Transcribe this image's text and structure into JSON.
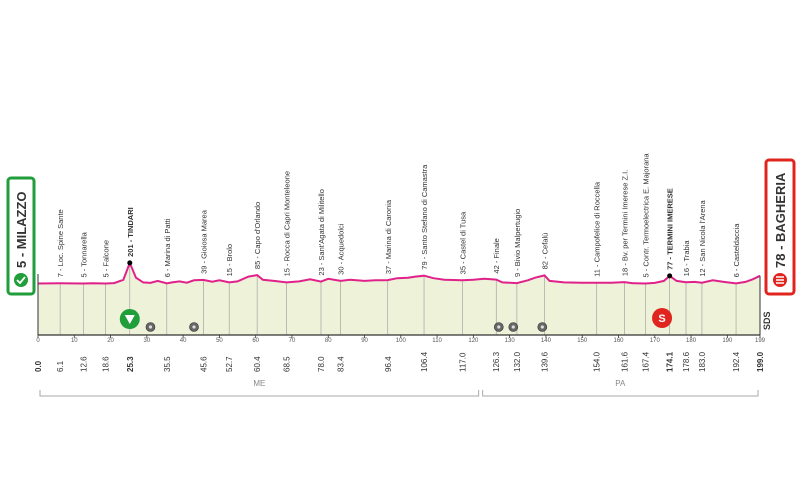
{
  "start": {
    "elevation": "5",
    "name": "MILAZZO",
    "km": "0.0"
  },
  "finish": {
    "elevation": "78",
    "name": "BAGHERIA",
    "km": "199.0"
  },
  "colors": {
    "profile_line": "#e0218a",
    "fill": "#eef2d9",
    "start_box": "#1f9e3a",
    "finish_box": "#e0241e",
    "sprint_marker": "#e0241e",
    "start_marker": "#1f9e3a",
    "grid": "#999999"
  },
  "chart_data": {
    "type": "area",
    "title": "",
    "xlabel": "",
    "ylabel": "",
    "xlim": [
      0,
      199
    ],
    "x_ticks": [
      0,
      10,
      20,
      30,
      40,
      50,
      60,
      70,
      80,
      90,
      100,
      110,
      120,
      130,
      140,
      150,
      160,
      170,
      180,
      190,
      199
    ],
    "x_tick_labels": [
      "0",
      "10",
      "20",
      "30",
      "40",
      "50",
      "60",
      "70",
      "80",
      "90",
      "100",
      "110",
      "120",
      "130",
      "140",
      "150",
      "160",
      "170",
      "180",
      "190",
      "199"
    ],
    "profile": [
      [
        0,
        5
      ],
      [
        3,
        6
      ],
      [
        6.1,
        7
      ],
      [
        9,
        6
      ],
      [
        12.6,
        5
      ],
      [
        15,
        8
      ],
      [
        18.6,
        5
      ],
      [
        21,
        9
      ],
      [
        23.5,
        40
      ],
      [
        25.3,
        201
      ],
      [
        27,
        60
      ],
      [
        29,
        15
      ],
      [
        31,
        10
      ],
      [
        33,
        30
      ],
      [
        35.5,
        6
      ],
      [
        37,
        15
      ],
      [
        39,
        25
      ],
      [
        41,
        12
      ],
      [
        43,
        35
      ],
      [
        45.6,
        39
      ],
      [
        48,
        22
      ],
      [
        50,
        35
      ],
      [
        52.7,
        15
      ],
      [
        55,
        25
      ],
      [
        58,
        70
      ],
      [
        60.4,
        85
      ],
      [
        62,
        40
      ],
      [
        65,
        30
      ],
      [
        68.5,
        15
      ],
      [
        72,
        25
      ],
      [
        75,
        45
      ],
      [
        78,
        23
      ],
      [
        80,
        50
      ],
      [
        83.4,
        30
      ],
      [
        86,
        40
      ],
      [
        90,
        30
      ],
      [
        93,
        35
      ],
      [
        96.4,
        37
      ],
      [
        99,
        55
      ],
      [
        102,
        60
      ],
      [
        104,
        70
      ],
      [
        106.4,
        79
      ],
      [
        109,
        55
      ],
      [
        112,
        40
      ],
      [
        117,
        35
      ],
      [
        120,
        40
      ],
      [
        123,
        50
      ],
      [
        126.3,
        42
      ],
      [
        128,
        15
      ],
      [
        132,
        9
      ],
      [
        135,
        35
      ],
      [
        137,
        60
      ],
      [
        139.6,
        82
      ],
      [
        141,
        30
      ],
      [
        145,
        15
      ],
      [
        150,
        12
      ],
      [
        154,
        11
      ],
      [
        158,
        12
      ],
      [
        161.6,
        18
      ],
      [
        164,
        8
      ],
      [
        167.4,
        5
      ],
      [
        170,
        10
      ],
      [
        172.5,
        30
      ],
      [
        174.1,
        77
      ],
      [
        176,
        30
      ],
      [
        178.6,
        16
      ],
      [
        181,
        20
      ],
      [
        183,
        12
      ],
      [
        186,
        35
      ],
      [
        189,
        20
      ],
      [
        192.4,
        6
      ],
      [
        195,
        20
      ],
      [
        197,
        45
      ],
      [
        199,
        78
      ]
    ],
    "waypoints": [
      {
        "km": "0.0",
        "label": ""
      },
      {
        "km": "6.1",
        "label": "7 - Loc. Spine Sante"
      },
      {
        "km": "12.6",
        "label": "5 - Tonnarella"
      },
      {
        "km": "18.6",
        "label": "5 - Falcone"
      },
      {
        "km": "25.3",
        "label": "201 - TINDARI"
      },
      {
        "km": "35.5",
        "label": "6 - Marina di Patti"
      },
      {
        "km": "45.6",
        "label": "39 - Gioiosa Marea"
      },
      {
        "km": "52.7",
        "label": "15 - Brolo"
      },
      {
        "km": "60.4",
        "label": "85 - Capo d'Orlando"
      },
      {
        "km": "68.5",
        "label": "15 - Rocca di Capri Monteleone"
      },
      {
        "km": "78.0",
        "label": "23 - Sant'Agata di Militello"
      },
      {
        "km": "83.4",
        "label": "30 - Acquedolci"
      },
      {
        "km": "96.4",
        "label": "37 - Marina di Caronia"
      },
      {
        "km": "106.4",
        "label": "79 - Santo Stefano di Camastra"
      },
      {
        "km": "117.0",
        "label": "35 - Castel di Tusa"
      },
      {
        "km": "126.3",
        "label": "42 - Finale"
      },
      {
        "km": "132.0",
        "label": "9 - Bivio Malpertugio"
      },
      {
        "km": "139.6",
        "label": "82 - Cefalù"
      },
      {
        "km": "154.0",
        "label": "11 - Campofelice di Roccella"
      },
      {
        "km": "161.6",
        "label": "18 - Bv. per Termini Imerese Z.I."
      },
      {
        "km": "167.4",
        "label": "5 - Contr. Termoelectrica E. Majorana"
      },
      {
        "km": "174.1",
        "label": "77 - TERMINI IMERESE"
      },
      {
        "km": "178.6",
        "label": "16 - Trabia"
      },
      {
        "km": "183.0",
        "label": "12 - San Nicola l'Arena"
      },
      {
        "km": "192.4",
        "label": "6 - Casteldaccia"
      },
      {
        "km": "199.0",
        "label": ""
      }
    ],
    "bold_waypoints": [
      "25.3",
      "174.1",
      "0.0",
      "199.0"
    ],
    "markers": [
      {
        "type": "start-marker",
        "km": 25.3
      },
      {
        "type": "camera",
        "km": 31
      },
      {
        "type": "camera",
        "km": 43
      },
      {
        "type": "camera",
        "km": 127
      },
      {
        "type": "camera",
        "km": 131
      },
      {
        "type": "camera",
        "km": 139
      },
      {
        "type": "sprint",
        "km": 172,
        "label": "S"
      }
    ],
    "peaks_marked": [
      25.3,
      174.1
    ],
    "provinces": [
      {
        "label": "ME",
        "from": 0,
        "to": 122
      },
      {
        "label": "PA",
        "from": 122,
        "to": 199
      }
    ],
    "right_label": "SDS"
  }
}
